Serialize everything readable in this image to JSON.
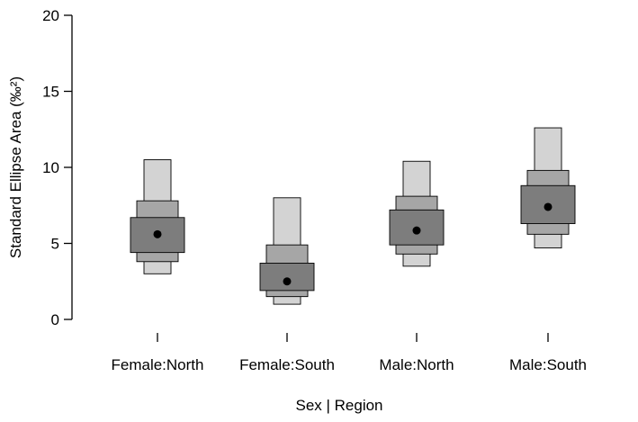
{
  "chart_data": {
    "type": "box",
    "xlabel": "Sex | Region",
    "ylabel": "Standard Ellipse Area (‰²)",
    "ylim": [
      0,
      20
    ],
    "yticks": [
      0,
      5,
      10,
      15,
      20
    ],
    "categories": [
      "Female:North",
      "Female:South",
      "Male:North",
      "Male:South"
    ],
    "groups": [
      {
        "mode": 5.6,
        "ci50": [
          4.4,
          6.7
        ],
        "ci75": [
          3.8,
          7.8
        ],
        "ci95": [
          3.0,
          10.5
        ]
      },
      {
        "mode": 2.5,
        "ci50": [
          1.9,
          3.7
        ],
        "ci75": [
          1.5,
          4.9
        ],
        "ci95": [
          1.0,
          8.0
        ]
      },
      {
        "mode": 5.85,
        "ci50": [
          4.9,
          7.2
        ],
        "ci75": [
          4.3,
          8.1
        ],
        "ci95": [
          3.5,
          10.4
        ]
      },
      {
        "mode": 7.4,
        "ci50": [
          6.3,
          8.8
        ],
        "ci75": [
          5.6,
          9.8
        ],
        "ci95": [
          4.7,
          12.6
        ]
      }
    ],
    "colors": {
      "ci95": "#d3d3d3",
      "ci75": "#a6a6a6",
      "ci50": "#7d7d7d",
      "mode": "#000000"
    },
    "grid": false,
    "legend": "none"
  }
}
